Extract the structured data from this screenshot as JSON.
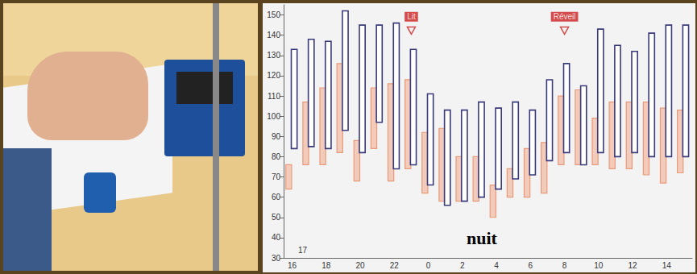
{
  "chart_data": {
    "type": "range_bar",
    "categories": [
      "16",
      null,
      "18",
      null,
      "20",
      null,
      "22",
      null,
      "0",
      null,
      "2",
      null,
      "4",
      null,
      "6",
      null,
      "8",
      null,
      "10",
      null,
      "12",
      null,
      "14",
      null
    ],
    "series": [
      {
        "color": "#e89a7a",
        "values": [
          [
            64,
            76
          ],
          [
            76,
            107
          ],
          [
            76,
            114
          ],
          [
            82,
            126
          ],
          [
            68,
            88
          ],
          [
            84,
            114
          ],
          [
            68,
            116
          ],
          [
            74,
            118
          ],
          [
            62,
            92
          ],
          [
            58,
            94
          ],
          [
            58,
            80
          ],
          [
            58,
            80
          ],
          [
            50,
            66
          ],
          [
            60,
            74
          ],
          [
            60,
            84
          ],
          [
            62,
            87
          ],
          [
            76,
            110
          ],
          [
            76,
            113
          ],
          [
            76,
            99
          ],
          [
            74,
            107
          ],
          [
            74,
            107
          ],
          [
            71,
            107
          ],
          [
            67,
            104
          ],
          [
            72,
            103
          ]
        ]
      },
      {
        "color": "#3a3a7a",
        "values": [
          [
            84,
            133
          ],
          [
            85,
            138
          ],
          [
            84,
            137
          ],
          [
            93,
            152
          ],
          [
            82,
            145
          ],
          [
            97,
            145
          ],
          [
            74,
            146
          ],
          [
            76,
            133
          ],
          [
            66,
            111
          ],
          [
            56,
            103
          ],
          [
            58,
            103
          ],
          [
            60,
            107
          ],
          [
            64,
            104
          ],
          [
            69,
            107
          ],
          [
            71,
            103
          ],
          [
            78,
            118
          ],
          [
            82,
            126
          ],
          [
            76,
            115
          ],
          [
            82,
            143
          ],
          [
            80,
            135
          ],
          [
            82,
            132
          ],
          [
            80,
            141
          ],
          [
            80,
            145
          ],
          [
            80,
            145
          ]
        ]
      }
    ],
    "markers": [
      {
        "text": "Lit",
        "category_index": 7
      },
      {
        "text": "Réveil",
        "category_index": 16
      }
    ],
    "annotations": [
      {
        "text": "nuit"
      },
      {
        "text": "17"
      }
    ],
    "ylim": [
      30,
      155
    ],
    "yticks": [
      30,
      40,
      50,
      60,
      70,
      80,
      90,
      100,
      110,
      120,
      130,
      140,
      150
    ],
    "grid": false
  }
}
